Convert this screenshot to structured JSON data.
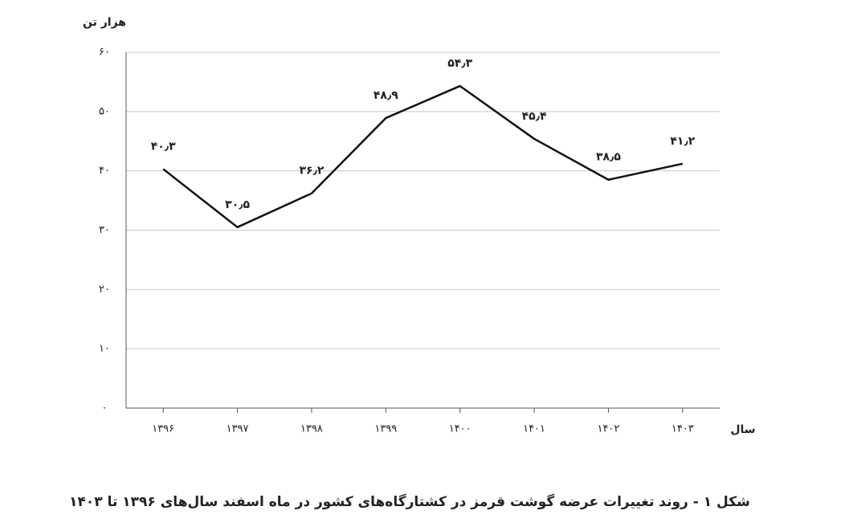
{
  "chart_data": {
    "type": "line",
    "title": "شکل ۱ - روند تغییرات عرضه گوشت قرمز در کشتارگاه‌های کشور در ماه اسفند سال‌های ۱۳۹۶ تا ۱۴۰۳",
    "y_label": "هزار تن",
    "x_label": "سال",
    "categories": [
      "۱۳۹۶",
      "۱۳۹۷",
      "۱۳۹۸",
      "۱۳۹۹",
      "۱۴۰۰",
      "۱۴۰۱",
      "۱۴۰۲",
      "۱۴۰۳"
    ],
    "values": [
      40.3,
      30.5,
      36.2,
      48.9,
      54.3,
      45.4,
      38.5,
      41.2
    ],
    "value_labels": [
      "۴۰٫۳",
      "۳۰٫۵",
      "۳۶٫۲",
      "۴۸٫۹",
      "۵۴٫۳",
      "۴۵٫۴",
      "۳۸٫۵",
      "۴۱٫۲"
    ],
    "color": "#111111",
    "ylim": [
      0,
      60
    ],
    "yticks": [
      {
        "value": 0,
        "label": "۰"
      },
      {
        "value": 10,
        "label": "۱۰"
      },
      {
        "value": 20,
        "label": "۲۰"
      },
      {
        "value": 30,
        "label": "۳۰"
      },
      {
        "value": 40,
        "label": "۴۰"
      },
      {
        "value": 50,
        "label": "۵۰"
      },
      {
        "value": 60,
        "label": "۶۰"
      }
    ],
    "grid": true
  }
}
